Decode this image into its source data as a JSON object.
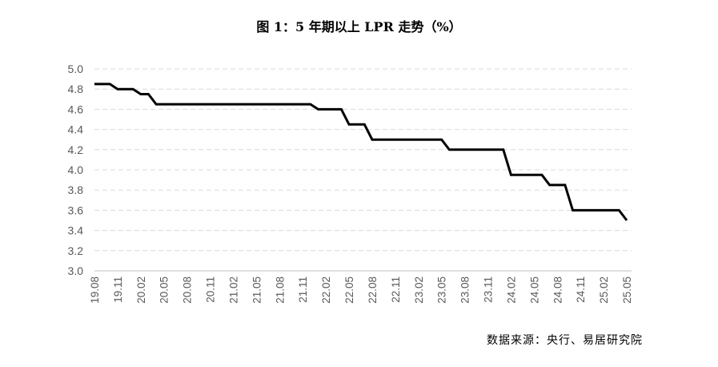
{
  "chart_data": {
    "type": "line",
    "title": "图 1：5 年期以上 LPR 走势（%）",
    "source": "数据来源：央行、易居研究院",
    "xlabel": "",
    "ylabel": "",
    "ylim": [
      3.0,
      5.0
    ],
    "yticks": [
      "3.0",
      "3.2",
      "3.4",
      "3.6",
      "3.8",
      "4.0",
      "4.2",
      "4.4",
      "4.6",
      "4.8",
      "5.0"
    ],
    "xticks": [
      "19.08",
      "19.11",
      "20.02",
      "20.05",
      "20.08",
      "20.11",
      "21.02",
      "21.05",
      "21.08",
      "21.11",
      "22.02",
      "22.05",
      "22.08",
      "22.11",
      "23.02",
      "23.05",
      "23.08",
      "23.11",
      "24.02",
      "24.05",
      "24.08",
      "24.11",
      "25.02",
      "25.05"
    ],
    "grid": true,
    "line_color": "#000000",
    "series": [
      {
        "x": [
          "19.08",
          "19.09",
          "19.10",
          "19.11",
          "19.12",
          "20.01",
          "20.02",
          "20.03",
          "20.04",
          "20.05",
          "20.06",
          "20.07",
          "20.08",
          "20.09",
          "20.10",
          "20.11",
          "20.12",
          "21.01",
          "21.02",
          "21.03",
          "21.04",
          "21.05",
          "21.06",
          "21.07",
          "21.08",
          "21.09",
          "21.10",
          "21.11",
          "21.12",
          "22.01",
          "22.02",
          "22.03",
          "22.04",
          "22.05",
          "22.06",
          "22.07",
          "22.08",
          "22.09",
          "22.10",
          "22.11",
          "22.12",
          "23.01",
          "23.02",
          "23.03",
          "23.04",
          "23.05",
          "23.06",
          "23.07",
          "23.08",
          "23.09",
          "23.10",
          "23.11",
          "23.12",
          "24.01",
          "24.02",
          "24.03",
          "24.04",
          "24.05",
          "24.06",
          "24.07",
          "24.08",
          "24.09",
          "24.10",
          "24.11",
          "24.12",
          "25.01",
          "25.02",
          "25.03",
          "25.04",
          "25.05"
        ],
        "values": [
          4.85,
          4.85,
          4.85,
          4.8,
          4.8,
          4.8,
          4.75,
          4.75,
          4.65,
          4.65,
          4.65,
          4.65,
          4.65,
          4.65,
          4.65,
          4.65,
          4.65,
          4.65,
          4.65,
          4.65,
          4.65,
          4.65,
          4.65,
          4.65,
          4.65,
          4.65,
          4.65,
          4.65,
          4.65,
          4.6,
          4.6,
          4.6,
          4.6,
          4.45,
          4.45,
          4.45,
          4.3,
          4.3,
          4.3,
          4.3,
          4.3,
          4.3,
          4.3,
          4.3,
          4.3,
          4.3,
          4.2,
          4.2,
          4.2,
          4.2,
          4.2,
          4.2,
          4.2,
          4.2,
          3.95,
          3.95,
          3.95,
          3.95,
          3.95,
          3.85,
          3.85,
          3.85,
          3.6,
          3.6,
          3.6,
          3.6,
          3.6,
          3.6,
          3.6,
          3.5
        ]
      }
    ]
  }
}
